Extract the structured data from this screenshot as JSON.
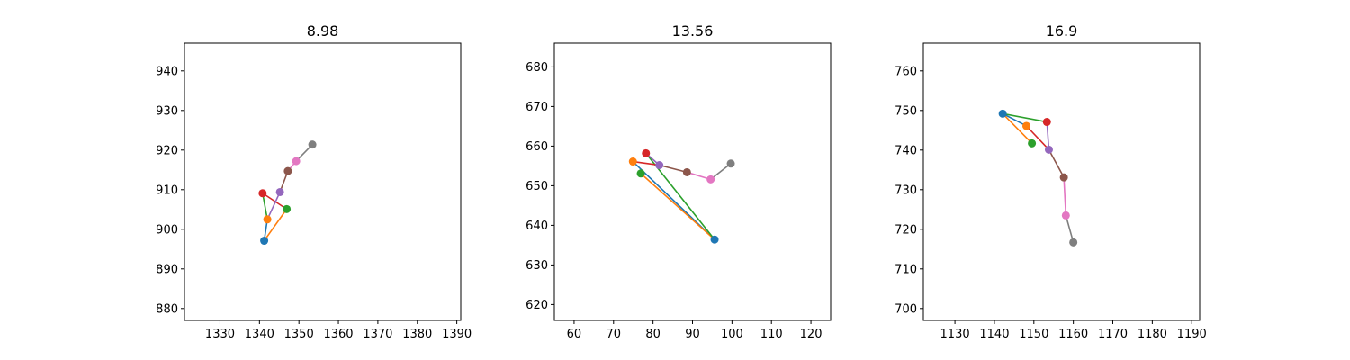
{
  "colors": {
    "palette": [
      "#1f77b4",
      "#ff7f0e",
      "#2ca02c",
      "#d62728",
      "#9467bd",
      "#8c564b",
      "#e377c2",
      "#7f7f7f"
    ],
    "axes": "#000000",
    "background": "#ffffff"
  },
  "chart_data": [
    {
      "type": "line",
      "title": "8.98",
      "xlabel": "",
      "ylabel": "",
      "grid": false,
      "legend": "none",
      "xlim": [
        1321,
        1391
      ],
      "ylim": [
        877,
        947
      ],
      "xticks": [
        1330,
        1340,
        1350,
        1360,
        1370,
        1380,
        1390
      ],
      "yticks": [
        880,
        890,
        900,
        910,
        920,
        930,
        940
      ],
      "keypoints": [
        {
          "x": 1341.2,
          "y": 897.1
        },
        {
          "x": 1342.0,
          "y": 902.5
        },
        {
          "x": 1346.9,
          "y": 905.1
        },
        {
          "x": 1340.8,
          "y": 909.1
        },
        {
          "x": 1345.2,
          "y": 909.4
        },
        {
          "x": 1347.2,
          "y": 914.7
        },
        {
          "x": 1349.3,
          "y": 917.2
        },
        {
          "x": 1353.4,
          "y": 921.4
        }
      ],
      "edges": [
        [
          0,
          1
        ],
        [
          0,
          2
        ],
        [
          1,
          3
        ],
        [
          2,
          3
        ],
        [
          1,
          4
        ],
        [
          4,
          5
        ],
        [
          5,
          6
        ],
        [
          6,
          7
        ]
      ]
    },
    {
      "type": "line",
      "title": "13.56",
      "xlabel": "",
      "ylabel": "",
      "grid": false,
      "legend": "none",
      "xlim": [
        55,
        125
      ],
      "ylim": [
        616,
        686
      ],
      "xticks": [
        60,
        70,
        80,
        90,
        100,
        110,
        120
      ],
      "yticks": [
        620,
        630,
        640,
        650,
        660,
        670,
        680
      ],
      "keypoints": [
        {
          "x": 95.6,
          "y": 636.4
        },
        {
          "x": 74.9,
          "y": 656.1
        },
        {
          "x": 76.9,
          "y": 653.1
        },
        {
          "x": 78.2,
          "y": 658.2
        },
        {
          "x": 81.6,
          "y": 655.2
        },
        {
          "x": 88.6,
          "y": 653.4
        },
        {
          "x": 94.6,
          "y": 651.6
        },
        {
          "x": 99.7,
          "y": 655.6
        }
      ],
      "edges": [
        [
          0,
          1
        ],
        [
          0,
          2
        ],
        [
          0,
          3
        ],
        [
          1,
          4
        ],
        [
          3,
          4
        ],
        [
          4,
          5
        ],
        [
          5,
          6
        ],
        [
          6,
          7
        ]
      ]
    },
    {
      "type": "line",
      "title": "16.9",
      "xlabel": "",
      "ylabel": "",
      "grid": false,
      "legend": "none",
      "xlim": [
        1122,
        1192
      ],
      "ylim": [
        697,
        767
      ],
      "xticks": [
        1130,
        1140,
        1150,
        1160,
        1170,
        1180,
        1190
      ],
      "yticks": [
        700,
        710,
        720,
        730,
        740,
        750,
        760
      ],
      "keypoints": [
        {
          "x": 1142.1,
          "y": 749.2
        },
        {
          "x": 1148.1,
          "y": 746.1
        },
        {
          "x": 1149.5,
          "y": 741.7
        },
        {
          "x": 1153.3,
          "y": 747.1
        },
        {
          "x": 1153.8,
          "y": 740.1
        },
        {
          "x": 1157.6,
          "y": 733.1
        },
        {
          "x": 1158.1,
          "y": 723.5
        },
        {
          "x": 1160.0,
          "y": 716.7
        }
      ],
      "edges": [
        [
          0,
          1
        ],
        [
          0,
          2
        ],
        [
          0,
          3
        ],
        [
          1,
          4
        ],
        [
          3,
          4
        ],
        [
          4,
          5
        ],
        [
          5,
          6
        ],
        [
          6,
          7
        ]
      ]
    }
  ]
}
